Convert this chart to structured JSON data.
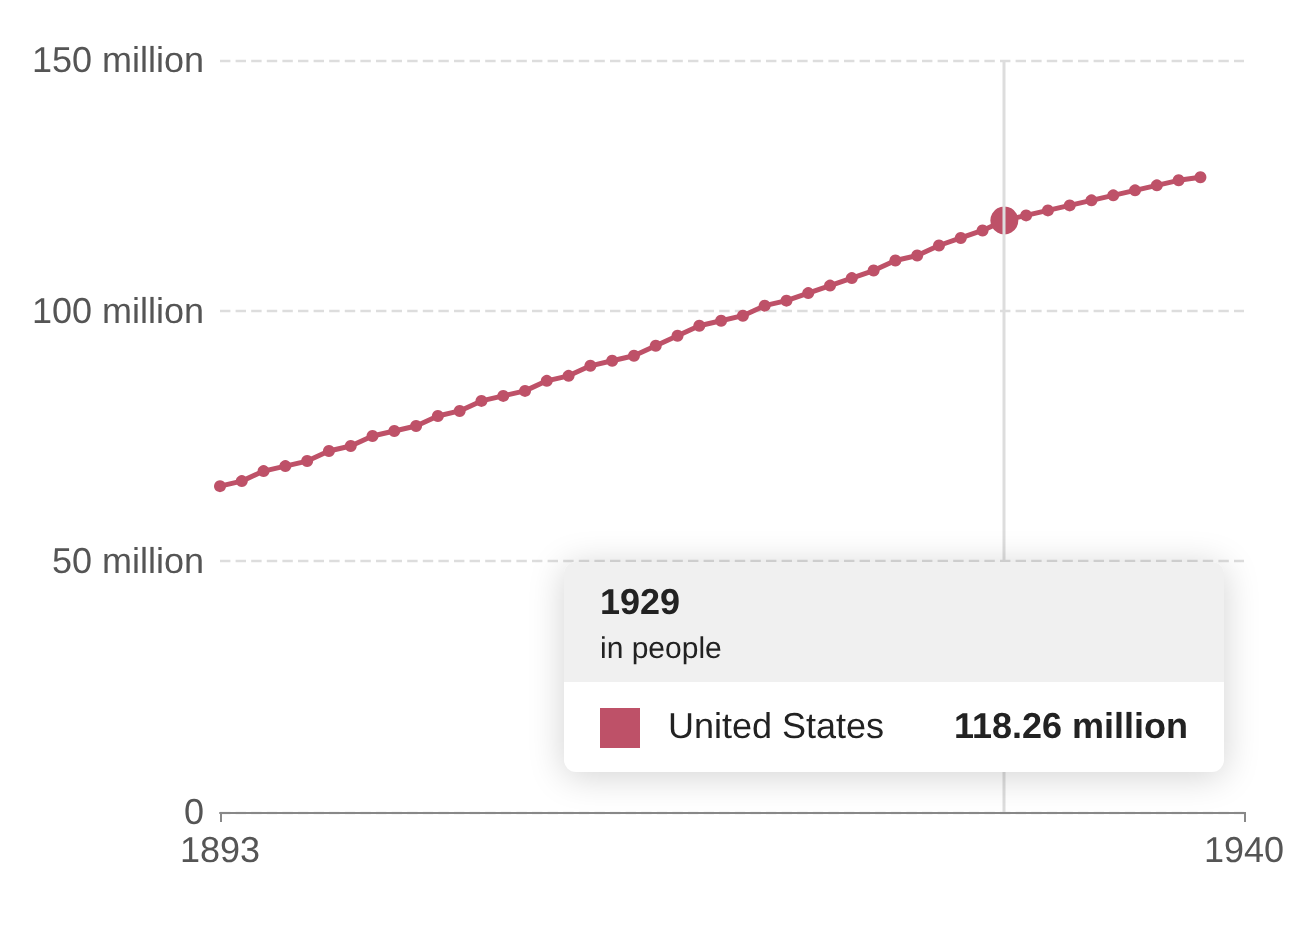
{
  "chart_data": {
    "type": "line",
    "x": [
      1893,
      1894,
      1895,
      1896,
      1897,
      1898,
      1899,
      1900,
      1901,
      1902,
      1903,
      1904,
      1905,
      1906,
      1907,
      1908,
      1909,
      1910,
      1911,
      1912,
      1913,
      1914,
      1915,
      1916,
      1917,
      1918,
      1919,
      1920,
      1921,
      1922,
      1923,
      1924,
      1925,
      1926,
      1927,
      1928,
      1929,
      1930,
      1931,
      1932,
      1933,
      1934,
      1935,
      1936,
      1937,
      1938
    ],
    "series": [
      {
        "name": "United States",
        "color": "#be5168",
        "values": [
          65,
          66,
          68,
          69,
          70,
          72,
          73,
          75,
          76,
          77,
          79,
          80,
          82,
          83,
          84,
          86,
          87,
          89,
          90,
          91,
          93,
          95,
          97,
          98,
          99,
          101,
          102,
          103.5,
          105,
          106.5,
          108,
          110,
          111,
          113,
          114.5,
          116,
          118,
          119,
          120,
          121,
          122,
          123,
          124,
          125,
          126,
          126.6
        ]
      }
    ],
    "xlim": [
      1893,
      1940
    ],
    "xticks": [
      1893,
      1940
    ],
    "ylim": [
      0,
      150
    ],
    "yticks": [
      0,
      {
        "value": 50,
        "label": "50 million"
      },
      {
        "value": 100,
        "label": "100 million"
      },
      {
        "value": 150,
        "label": "150 million"
      }
    ],
    "grid": "y",
    "legend": "bottom right",
    "marker": "circle",
    "line_style": "solid",
    "ref_lines": [
      {
        "axis": "x",
        "value": 1929,
        "color": "#dddddd"
      }
    ],
    "annotations": [
      "1929",
      "in people",
      "118.26 million"
    ]
  }
}
